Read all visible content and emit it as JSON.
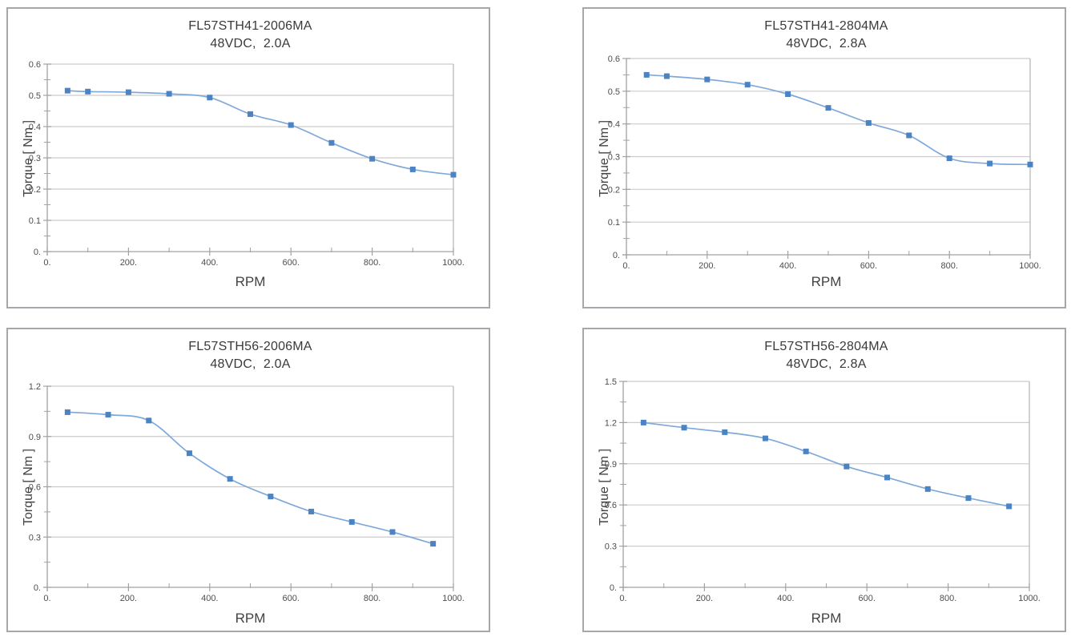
{
  "colors": {
    "marker": "#4c83c3",
    "line": "#7fa9d9",
    "grid": "#cccccc",
    "axis": "#a2a2a2",
    "plot_right_border": "#b5b5b5",
    "panel_border": "#a4a7ab",
    "title_text": "#3a3a3a",
    "tick_text": "#4d4d4d",
    "background": "#ffffff"
  },
  "chart_data": [
    {
      "type": "line",
      "title": "FL57STH41-2006MA",
      "subtitle": "48VDC,  2.0A",
      "xlabel": "RPM",
      "ylabel": "Torque [ Nm ]",
      "x": [
        50,
        100,
        200,
        300,
        400,
        500,
        600,
        700,
        800,
        900,
        1000
      ],
      "y": [
        0.515,
        0.512,
        0.51,
        0.505,
        0.493,
        0.44,
        0.405,
        0.348,
        0.297,
        0.263,
        0.246
      ],
      "xlim": [
        0,
        1000
      ],
      "ylim": [
        0,
        0.6
      ],
      "xticks": [
        0,
        200,
        400,
        600,
        800,
        1000
      ],
      "xtick_labels": [
        "0.",
        "200.",
        "400.",
        "600.",
        "800.",
        "1000."
      ],
      "xticks_minor": [
        100,
        300,
        500,
        700,
        900
      ],
      "yticks": [
        0,
        0.1,
        0.2,
        0.3,
        0.4,
        0.5,
        0.6
      ],
      "ytick_labels": [
        "0.",
        "0.1",
        "0.2",
        "0.3",
        "0.4",
        "0.5",
        "0.6"
      ],
      "yticks_minor": [
        0.05,
        0.15,
        0.25,
        0.35,
        0.45,
        0.55
      ],
      "grid": "horizontal",
      "legend": "none",
      "marker": "square"
    },
    {
      "type": "line",
      "title": "FL57STH41-2804MA",
      "subtitle": "48VDC,  2.8A",
      "xlabel": "RPM",
      "ylabel": "Torque [ Nm ]",
      "x": [
        50,
        100,
        200,
        300,
        400,
        500,
        600,
        700,
        800,
        900,
        1000
      ],
      "y": [
        0.55,
        0.546,
        0.536,
        0.52,
        0.491,
        0.449,
        0.403,
        0.365,
        0.295,
        0.279,
        0.276
      ],
      "xlim": [
        0,
        1000
      ],
      "ylim": [
        0,
        0.6
      ],
      "xticks": [
        0,
        200,
        400,
        600,
        800,
        1000
      ],
      "xtick_labels": [
        "0.",
        "200.",
        "400.",
        "600.",
        "800.",
        "1000."
      ],
      "xticks_minor": [
        100,
        300,
        500,
        700,
        900
      ],
      "yticks": [
        0,
        0.1,
        0.2,
        0.3,
        0.4,
        0.5,
        0.6
      ],
      "ytick_labels": [
        "0.",
        "0.1",
        "0.2",
        "0.3",
        "0.4",
        "0.5",
        "0.6"
      ],
      "yticks_minor": [
        0.05,
        0.15,
        0.25,
        0.35,
        0.45,
        0.55
      ],
      "grid": "horizontal",
      "legend": "none",
      "marker": "square"
    },
    {
      "type": "line",
      "title": "FL57STH56-2006MA",
      "subtitle": "48VDC,  2.0A",
      "xlabel": "RPM",
      "ylabel": "Torque [ Nm ]",
      "x": [
        50,
        150,
        250,
        350,
        450,
        550,
        650,
        750,
        850,
        950
      ],
      "y": [
        1.045,
        1.03,
        0.995,
        0.8,
        0.647,
        0.542,
        0.452,
        0.39,
        0.33,
        0.26
      ],
      "xlim": [
        0,
        1000
      ],
      "ylim": [
        0,
        1.2
      ],
      "xticks": [
        0,
        200,
        400,
        600,
        800,
        1000
      ],
      "xtick_labels": [
        "0.",
        "200.",
        "400.",
        "600.",
        "800.",
        "1000."
      ],
      "xticks_minor": [
        100,
        300,
        500,
        700,
        900
      ],
      "yticks": [
        0,
        0.3,
        0.6,
        0.9,
        1.2
      ],
      "ytick_labels": [
        "0.",
        "0.3",
        "0.6",
        "0.9",
        "1.2"
      ],
      "yticks_minor": [
        0.15,
        0.45,
        0.75,
        1.05
      ],
      "grid": "horizontal",
      "legend": "none",
      "marker": "square"
    },
    {
      "type": "line",
      "title": "FL57STH56-2804MA",
      "subtitle": "48VDC,  2.8A",
      "xlabel": "RPM",
      "ylabel": "Torque [ Nm ]",
      "x": [
        50,
        150,
        250,
        350,
        450,
        550,
        650,
        750,
        850,
        950
      ],
      "y": [
        1.2,
        1.163,
        1.13,
        1.085,
        0.99,
        0.88,
        0.8,
        0.716,
        0.65,
        0.59
      ],
      "xlim": [
        0,
        1000
      ],
      "ylim": [
        0,
        1.5
      ],
      "xticks": [
        0,
        200,
        400,
        600,
        800,
        1000
      ],
      "xtick_labels": [
        "0.",
        "200.",
        "400.",
        "600.",
        "800.",
        "1000."
      ],
      "xticks_minor": [
        100,
        300,
        500,
        700,
        900
      ],
      "yticks": [
        0,
        0.3,
        0.6,
        0.9,
        1.2,
        1.5
      ],
      "ytick_labels": [
        "0.",
        "0.3",
        "0.6",
        "0.9",
        "1.2",
        "1.5"
      ],
      "yticks_minor": [
        0.15,
        0.45,
        0.75,
        1.05,
        1.35
      ],
      "grid": "horizontal",
      "legend": "none",
      "marker": "square"
    }
  ]
}
